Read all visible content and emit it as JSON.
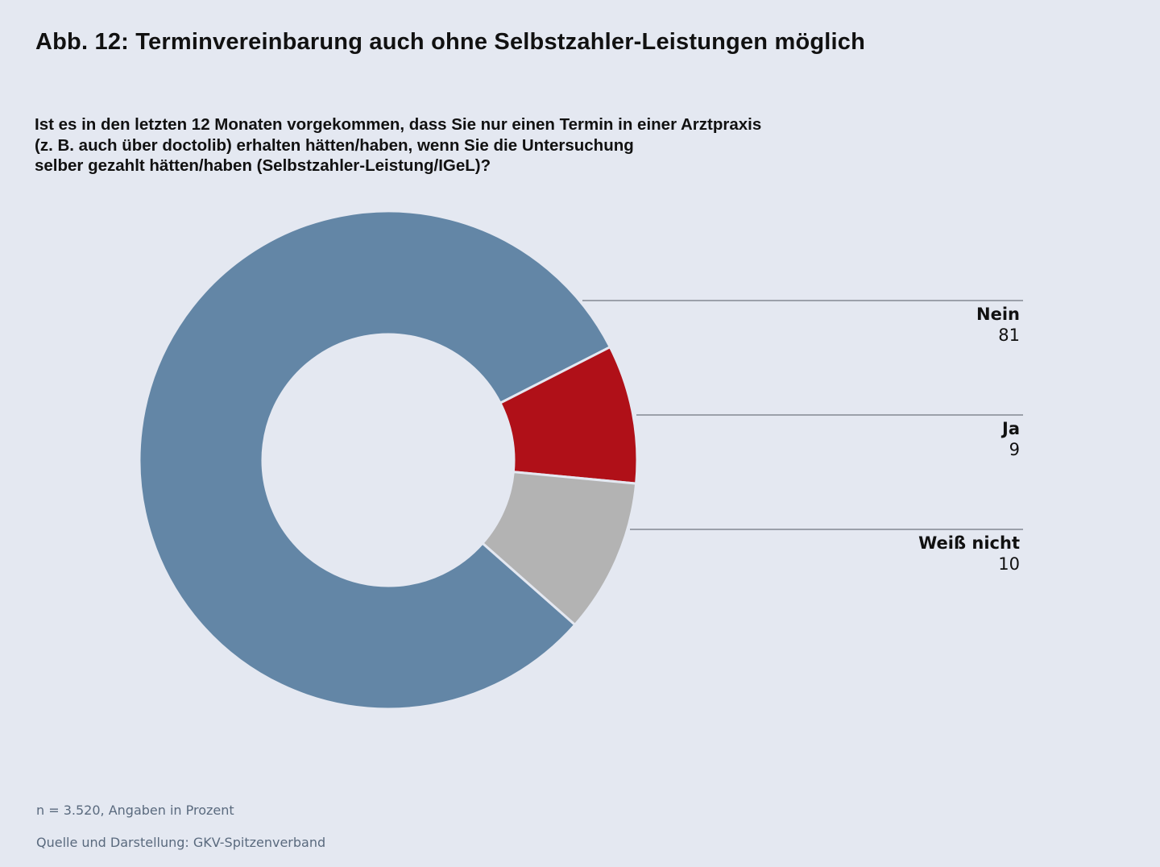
{
  "title": "Abb. 12: Terminvereinbarung auch ohne Selbstzahler-Leistungen möglich",
  "question": "Ist es in den letzten 12 Monaten vorgekommen, dass Sie nur einen Termin in einer Arztpraxis\n(z. B. auch über doctolib) erhalten hätten/haben, wenn Sie die Untersuchung\nselber gezahlt hätten/haben (Selbstzahler-Leistung/IGeL)?",
  "footer": {
    "note": "n = 3.520, Angaben in Prozent",
    "source": "Quelle und Darstellung: GKV-Spitzenverband"
  },
  "chart_data": {
    "type": "pie",
    "variant": "donut",
    "title": "Abb. 12: Terminvereinbarung auch ohne Selbstzahler-Leistungen möglich",
    "unit": "Prozent",
    "categories": [
      "Nein",
      "Ja",
      "Weiß nicht"
    ],
    "values": [
      81,
      9,
      10
    ],
    "colors": [
      "#6386a6",
      "#b01018",
      "#b3b3b3"
    ],
    "legend": "right"
  }
}
